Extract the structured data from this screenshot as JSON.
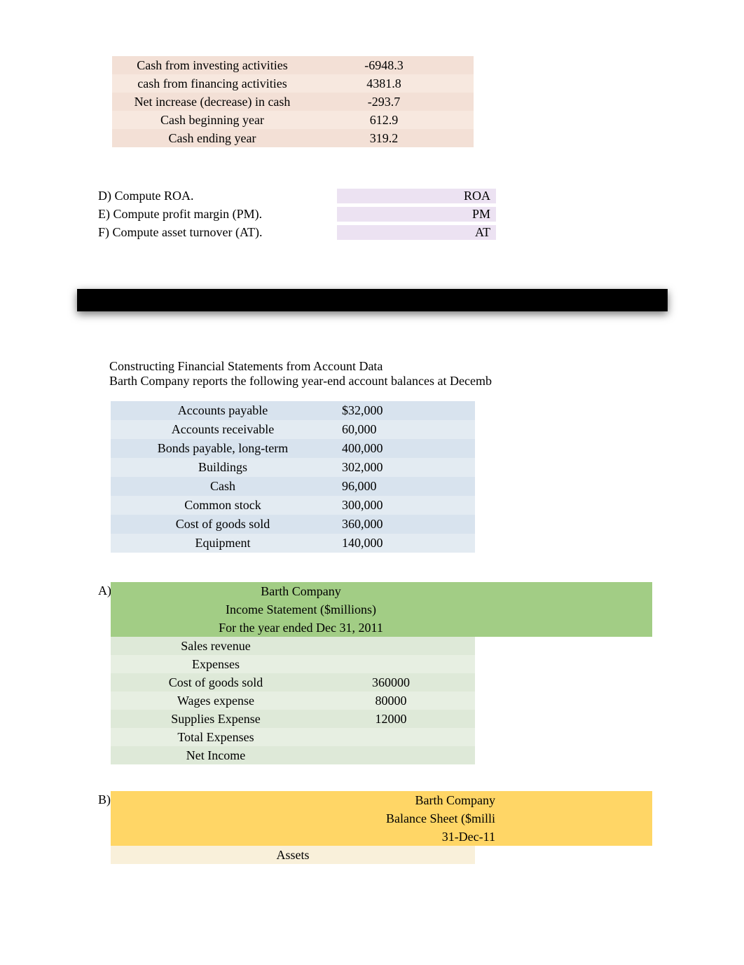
{
  "cashflow": {
    "rows": [
      {
        "label": "Cash from investing activities",
        "value": "-6948.3"
      },
      {
        "label": "cash from financing activities",
        "value": "4381.8"
      },
      {
        "label": "Net increase (decrease) in cash",
        "value": "-293.7"
      },
      {
        "label": "Cash beginning year",
        "value": "612.9"
      },
      {
        "label": "Cash ending year",
        "value": "319.2"
      }
    ]
  },
  "ratios": {
    "rows": [
      {
        "text": "D) Compute ROA.",
        "label": "ROA"
      },
      {
        "text": " E) Compute profit margin (PM).",
        "label": "PM"
      },
      {
        "text": " F) Compute asset turnover (AT).",
        "label": "AT"
      }
    ]
  },
  "intro": {
    "line1": "Constructing Financial Statements from Account Data",
    "line2": "Barth Company reports the following year-end account balances at Decemb"
  },
  "accounts": {
    "rows": [
      {
        "label": "Accounts payable",
        "value": "$32,000"
      },
      {
        "label": "Accounts receivable",
        "value": "60,000"
      },
      {
        "label": "Bonds payable, long-term",
        "value": "400,000"
      },
      {
        "label": "Buildings",
        "value": "302,000"
      },
      {
        "label": "Cash",
        "value": "96,000"
      },
      {
        "label": "Common stock",
        "value": "300,000"
      },
      {
        "label": "Cost of goods sold",
        "value": "360,000"
      },
      {
        "label": "Equipment",
        "value": "140,000"
      }
    ]
  },
  "incomeStatement": {
    "letter": "A)",
    "title": "Barth Company",
    "subtitle": "Income Statement ($millions)",
    "period": "For the year ended Dec 31, 2011",
    "rows": [
      {
        "label": "Sales revenue",
        "value": ""
      },
      {
        "label": "Expenses",
        "value": ""
      },
      {
        "label": "Cost of goods sold",
        "value": "360000"
      },
      {
        "label": "Wages expense",
        "value": "80000"
      },
      {
        "label": "Supplies Expense",
        "value": "12000"
      },
      {
        "label": "Total Expenses",
        "value": ""
      },
      {
        "label": "Net Income",
        "value": ""
      }
    ]
  },
  "balanceSheet": {
    "letter": "B)",
    "title": "Barth Company",
    "subtitle": "Balance Sheet ($milli",
    "date": "31-Dec-11",
    "assetsLabel": "Assets"
  },
  "colors": {
    "peach1": "#f3e0d6",
    "peach2": "#f7e8df",
    "purple": "#ece2f2",
    "blackbar": "#000000",
    "blue1": "#d8e3ee",
    "blue2": "#e3ebf2",
    "greenHdr": "#a2cd85",
    "green1": "#dee9d8",
    "green2": "#e7efe2",
    "yellowHdr": "#ffd666",
    "beige": "#f9f0da"
  }
}
